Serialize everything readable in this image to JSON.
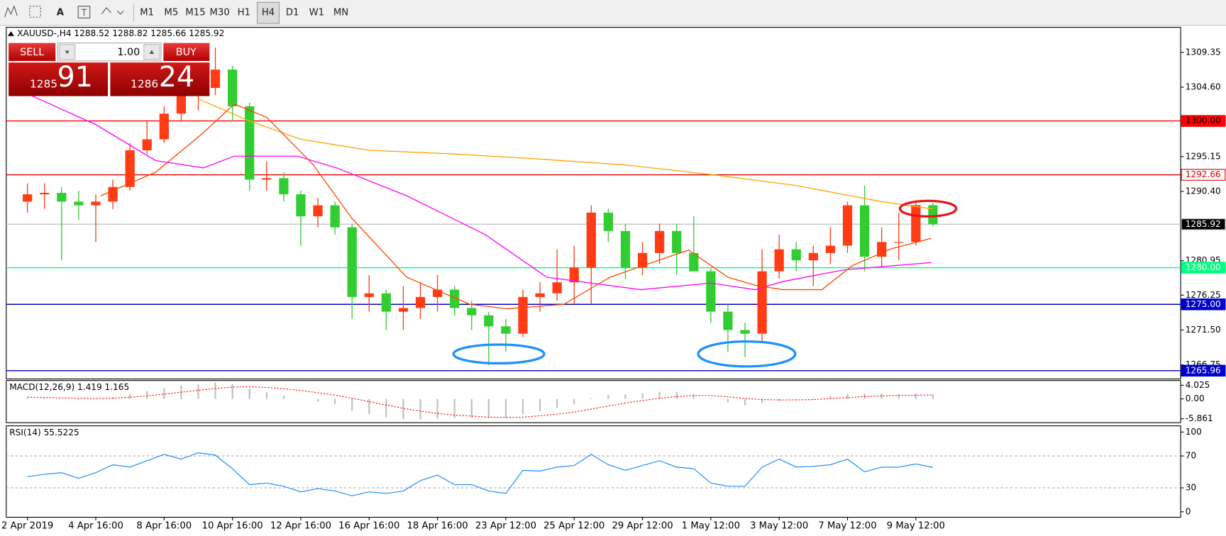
{
  "toolbar": {
    "text_tool": "A",
    "timeframes": [
      "M1",
      "M5",
      "M15",
      "M30",
      "H1",
      "H4",
      "D1",
      "W1",
      "MN"
    ],
    "active_index": 5
  },
  "symbol_header": "XAUUSD-,H4  1288.52 1288.82 1285.66 1285.92",
  "trade_panel": {
    "sell": "SELL",
    "buy": "BUY",
    "volume": "1.00",
    "bid_prefix": "1285",
    "bid_big": "91",
    "ask_prefix": "1286",
    "ask_big": "24"
  },
  "chart_data": [
    {
      "type": "candlestick",
      "up_color": "#ff3c14",
      "down_color": "#32cd32",
      "xlim": [
        -1.24,
        67.5
      ],
      "ylim": [
        1264.83,
        1312.76
      ],
      "xticks": [
        {
          "value": 0,
          "label": "2 Apr 2019"
        },
        {
          "value": 4,
          "label": "4 Apr 16:00"
        },
        {
          "value": 8,
          "label": "8 Apr 16:00"
        },
        {
          "value": 12,
          "label": "10 Apr 16:00"
        },
        {
          "value": 16,
          "label": "12 Apr 16:00"
        },
        {
          "value": 20,
          "label": "16 Apr 16:00"
        },
        {
          "value": 24,
          "label": "18 Apr 16:00"
        },
        {
          "value": 28,
          "label": "23 Apr 12:00"
        },
        {
          "value": 32,
          "label": "25 Apr 12:00"
        },
        {
          "value": 36,
          "label": "29 Apr 12:00"
        },
        {
          "value": 40,
          "label": "1 May 12:00"
        },
        {
          "value": 44,
          "label": "3 May 12:00"
        },
        {
          "value": 48,
          "label": "7 May 12:00"
        },
        {
          "value": 52,
          "label": "9 May 12:00"
        }
      ],
      "yticks": [
        1309.35,
        {
          "value": 1304.6,
          "label": "1304.60"
        },
        1295.15,
        {
          "value": 1290.4,
          "label": "1290.40"
        },
        1280.95,
        1276.25,
        {
          "value": 1271.5,
          "label": "1271.50"
        },
        1266.75
      ],
      "candles": [
        [
          1289,
          1291.5,
          1287.5,
          1290
        ],
        [
          1290,
          1291.5,
          1288,
          1290.2
        ],
        [
          1290.2,
          1291,
          1281,
          1289
        ],
        [
          1289,
          1290.5,
          1286.5,
          1288.5
        ],
        [
          1288.5,
          1290,
          1283.5,
          1289
        ],
        [
          1289,
          1292,
          1288,
          1291
        ],
        [
          1291,
          1297,
          1290.5,
          1296
        ],
        [
          1296,
          1300,
          1295.5,
          1297.5
        ],
        [
          1297.5,
          1302,
          1297,
          1301
        ],
        [
          1301,
          1305.5,
          1300,
          1304
        ],
        [
          1304,
          1306,
          1301.5,
          1304.5
        ],
        [
          1304.5,
          1310,
          1303.5,
          1307
        ],
        [
          1307,
          1307.5,
          1300,
          1302
        ],
        [
          1302,
          1302.5,
          1290.5,
          1292
        ],
        [
          1292,
          1294.5,
          1290.5,
          1292.2
        ],
        [
          1292.2,
          1293,
          1289,
          1290
        ],
        [
          1290,
          1290.5,
          1283,
          1287
        ],
        [
          1287,
          1289.5,
          1285.5,
          1288.5
        ],
        [
          1288.5,
          1289,
          1284.5,
          1285.5
        ],
        [
          1285.5,
          1286,
          1273,
          1276
        ],
        [
          1276,
          1279,
          1274,
          1276.5
        ],
        [
          1276.5,
          1277,
          1271.5,
          1274
        ],
        [
          1274,
          1277.5,
          1271.5,
          1274.5
        ],
        [
          1274.5,
          1278,
          1273,
          1276
        ],
        [
          1276,
          1279,
          1274,
          1277
        ],
        [
          1277,
          1277.5,
          1273.5,
          1274.5
        ],
        [
          1274.5,
          1275.5,
          1271.5,
          1273.5
        ],
        [
          1273.5,
          1274,
          1266.7,
          1272
        ],
        [
          1272,
          1273,
          1268.5,
          1271
        ],
        [
          1271,
          1277,
          1270.5,
          1276
        ],
        [
          1276,
          1278,
          1274,
          1276.5
        ],
        [
          1276.5,
          1282.5,
          1275.5,
          1278
        ],
        [
          1278,
          1283,
          1275,
          1280
        ],
        [
          1280,
          1288.5,
          1275,
          1287.5
        ],
        [
          1287.5,
          1288,
          1283.5,
          1285
        ],
        [
          1285,
          1286,
          1278.5,
          1280
        ],
        [
          1280,
          1283.5,
          1279,
          1282
        ],
        [
          1282,
          1286,
          1280.5,
          1285
        ],
        [
          1285,
          1286,
          1279,
          1282
        ],
        [
          1282,
          1287,
          1279.5,
          1279.5
        ],
        [
          1279.5,
          1280,
          1272.5,
          1274
        ],
        [
          1274,
          1275,
          1268.5,
          1271.5
        ],
        [
          1271.5,
          1272.5,
          1267.8,
          1271
        ],
        [
          1271,
          1282.5,
          1270,
          1279.5
        ],
        [
          1279.5,
          1284.5,
          1278.5,
          1282.5
        ],
        [
          1282.5,
          1283.5,
          1279.5,
          1281
        ],
        [
          1281,
          1283,
          1277.5,
          1282
        ],
        [
          1282,
          1285.5,
          1280.5,
          1283
        ],
        [
          1283,
          1289,
          1282,
          1288.5
        ],
        [
          1288.5,
          1291.2,
          1279.5,
          1281.5
        ],
        [
          1281.5,
          1285.5,
          1280,
          1283.5
        ],
        [
          1283.5,
          1287.5,
          1281,
          1283.5
        ],
        [
          1283.5,
          1289,
          1283,
          1288.52
        ],
        [
          1288.52,
          1288.82,
          1285.66,
          1285.92
        ]
      ],
      "lines": [
        {
          "color": "#ffa500",
          "x": [
            10,
            13,
            16,
            20,
            25,
            30,
            35,
            40,
            45,
            50,
            53
          ],
          "values": [
            1303,
            1300,
            1297.5,
            1296,
            1295.5,
            1294.8,
            1294,
            1292.7,
            1291.2,
            1289,
            1288
          ]
        },
        {
          "color": "#ff00ff",
          "x": [
            0,
            4,
            7.5,
            10.3,
            12.1,
            15.8,
            18.1,
            22.2,
            26.8,
            30.4,
            35.9,
            40,
            42.6,
            44.2,
            47.8,
            52.9
          ],
          "values": [
            1303.7,
            1299.5,
            1294.6,
            1293.6,
            1295.2,
            1295.2,
            1293.6,
            1289.8,
            1284.5,
            1278.7,
            1277,
            1277.9,
            1277,
            1278.1,
            1279.7,
            1280.7
          ]
        },
        {
          "color": "#ff4500",
          "x": [
            4.3,
            7.5,
            10.3,
            12.1,
            14,
            16.7,
            19,
            22.2,
            25.9,
            28.1,
            31.4,
            34.1,
            37.3,
            38.7,
            41,
            42.6,
            44.2,
            46.5,
            48.3,
            50.6,
            52.9
          ],
          "values": [
            1289.8,
            1293,
            1298.4,
            1302.3,
            1300.5,
            1294.1,
            1286.7,
            1278.7,
            1275,
            1274.4,
            1275,
            1278.7,
            1281.3,
            1282.4,
            1278.7,
            1277.6,
            1277,
            1277,
            1280.3,
            1282.6,
            1284
          ]
        }
      ],
      "levels": [
        {
          "value": 1300,
          "label": "1300.00",
          "color": "#ff0000",
          "label_bg": "#ff0000",
          "label_color": "#000000"
        },
        {
          "value": 1292.66,
          "color": "#e00000",
          "label_bg": "#ffffff",
          "label_color": "#e00000"
        },
        {
          "value": 1285.92,
          "color": "#c8c8c8",
          "label_bg": "#000000",
          "label_color": "#ffffff"
        },
        {
          "value": 1280,
          "label": "1280.00",
          "color": "#00ff80",
          "label_bg": "#00ff80",
          "label_color": "#ffffff"
        },
        {
          "value": 1275,
          "label": "1275.00",
          "color": "#0000cd",
          "label_bg": "#0000cd",
          "label_color": "#ffffff"
        },
        {
          "value": 1265.96,
          "color": "#0000cd",
          "label_bg": "#0000cd",
          "label_color": "#ffffff"
        }
      ]
    },
    {
      "type": "macd",
      "title": "MACD(12,26,9) 1.419 1.165",
      "ylim": [
        -7.04,
        5.44
      ],
      "yticks": [
        4.025,
        {
          "value": 0,
          "label": "0.00"
        },
        -5.861
      ],
      "hist_color": "#c0c0c0",
      "signal_color": "#ff0000",
      "histogram": [
        0.3,
        0.2,
        0,
        -0.2,
        -0.1,
        0.5,
        1.5,
        2.3,
        3.2,
        4,
        4.3,
        4.8,
        4.4,
        3,
        2,
        1,
        0,
        -0.8,
        -1.5,
        -3.5,
        -4.5,
        -5.4,
        -5.9,
        -6,
        -5.8,
        -5.7,
        -5.6,
        -5.7,
        -5.6,
        -4.5,
        -3.6,
        -2.6,
        -1.6,
        0.3,
        1.2,
        1.3,
        1.6,
        2.1,
        2.1,
        1.5,
        0.2,
        -1,
        -1.9,
        -1.2,
        -0.5,
        -0.1,
        0.3,
        0.8,
        1.5,
        1.5,
        1.6,
        1.5,
        1.6,
        1.419
      ],
      "signal": [
        0.5,
        0.4,
        0.3,
        0.2,
        0.1,
        0.2,
        0.5,
        0.9,
        1.4,
        2,
        2.5,
        3.1,
        3.5,
        3.6,
        3.4,
        3,
        2.5,
        1.8,
        1.1,
        0.2,
        -0.8,
        -1.8,
        -2.8,
        -3.6,
        -4.3,
        -4.8,
        -5.1,
        -5.4,
        -5.5,
        -5.4,
        -5,
        -4.5,
        -3.9,
        -3,
        -2.1,
        -1.2,
        -0.5,
        0.2,
        0.7,
        1,
        1,
        0.6,
        0.1,
        -0.2,
        -0.3,
        -0.3,
        -0.2,
        0.1,
        0.4,
        0.7,
        0.9,
        1,
        1.1,
        1.165
      ]
    },
    {
      "type": "line",
      "title": "RSI(14) 55.5225",
      "ylim": [
        -6.9,
        107.8
      ],
      "yticks": [
        100,
        70,
        30,
        0
      ],
      "levels": [
        70,
        30
      ],
      "color": "#1e90ff",
      "values": [
        44,
        47,
        49,
        42,
        49,
        59,
        56,
        64,
        72,
        66,
        74,
        71,
        54,
        34,
        36,
        32,
        25,
        29,
        26,
        20,
        25,
        23,
        26,
        39,
        46,
        34,
        34,
        26,
        23,
        52,
        51,
        56,
        58,
        72,
        59,
        52,
        58,
        64,
        56,
        54,
        36,
        32,
        32,
        56,
        66,
        56,
        57,
        59,
        66,
        50,
        56,
        56,
        60,
        55.5225
      ]
    }
  ]
}
